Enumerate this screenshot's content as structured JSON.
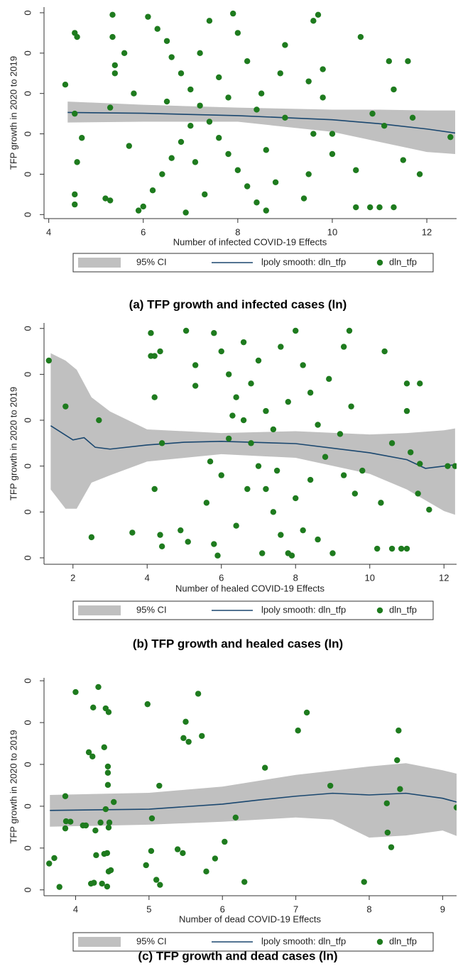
{
  "chart_data": [
    {
      "type": "scatter",
      "caption": "(a)  TFP growth and infected cases (ln)",
      "x_label": "Number of infected COVID-19 Effects",
      "y_label": "TFP growth in 2020 to 2019",
      "xlim": [
        3.9,
        12.63
      ],
      "ylim": [
        -0.1,
        5.14
      ],
      "xticks": [
        4,
        6,
        8,
        10,
        12
      ],
      "yticks": [
        {
          "value": 0,
          "label": "0"
        },
        {
          "value": 1,
          "label": "0"
        },
        {
          "value": 2,
          "label": "0"
        },
        {
          "value": 3,
          "label": "0"
        },
        {
          "value": 4,
          "label": "0"
        },
        {
          "value": 5,
          "label": "0"
        }
      ],
      "series": [
        {
          "name": "95% CI",
          "mark": "band",
          "color": "#c0c0c0",
          "x": [
            4.4,
            6,
            8,
            10,
            11,
            12,
            12.6
          ],
          "lower": [
            2.28,
            2.3,
            2.3,
            2.05,
            1.8,
            1.55,
            1.5
          ],
          "upper": [
            2.8,
            2.72,
            2.65,
            2.6,
            2.6,
            2.58,
            2.58
          ]
        },
        {
          "name": "lpoly smooth: dln_tfp",
          "mark": "line",
          "color": "#1a476f",
          "x": [
            4.4,
            6,
            8,
            10,
            11,
            12,
            12.6
          ],
          "values": [
            2.53,
            2.51,
            2.45,
            2.35,
            2.25,
            2.12,
            2.02
          ]
        },
        {
          "name": "dln_tfp",
          "mark": "point",
          "color": "#1e7b1e",
          "x": [
            4.35,
            4.55,
            4.6,
            4.55,
            4.6,
            4.55,
            4.55,
            4.7,
            5.2,
            5.3,
            5.35,
            5.35,
            5.4,
            5.4,
            5.3,
            10.6,
            11.2,
            11.6,
            11.3,
            11.1,
            11.7,
            11.5,
            11.85,
            10.5,
            10.85,
            10.5,
            10.8,
            11.0,
            11.3,
            12.5,
            12.7,
            9.7,
            9.6,
            9.8,
            9.5,
            9.8,
            9.6,
            10.0,
            10.0,
            9.5,
            9.4,
            6.1,
            6.3,
            6.5,
            6.6,
            6.8,
            7.0,
            7.2,
            7.4,
            7.6,
            7.8,
            8.0,
            8.2,
            8.4,
            8.6,
            6.0,
            6.2,
            6.4,
            6.6,
            6.8,
            7.0,
            7.2,
            7.4,
            7.6,
            7.8,
            8.0,
            8.2,
            8.4,
            8.6,
            8.8,
            9.0,
            9.0,
            5.8,
            5.7,
            5.6,
            5.9,
            6.9,
            7.3,
            7.9,
            8.9,
            6.5,
            7.1,
            8.5
          ],
          "values": [
            3.22,
            4.5,
            4.4,
            2.5,
            1.3,
            0.5,
            0.25,
            1.9,
            0.4,
            0.35,
            4.4,
            4.95,
            3.7,
            3.5,
            2.65,
            4.4,
            3.8,
            3.8,
            3.1,
            2.2,
            2.4,
            1.35,
            1.0,
            1.1,
            2.5,
            0.18,
            0.18,
            0.18,
            0.18,
            1.92,
            1.92,
            4.95,
            4.8,
            3.6,
            3.3,
            2.9,
            2.0,
            1.5,
            2.0,
            1.0,
            0.4,
            4.9,
            4.6,
            4.3,
            3.9,
            3.5,
            3.1,
            2.7,
            2.3,
            1.9,
            1.5,
            1.1,
            0.7,
            0.3,
            0.1,
            0.2,
            0.6,
            1.0,
            1.4,
            1.8,
            2.2,
            4.0,
            4.8,
            3.4,
            2.9,
            4.5,
            3.8,
            2.6,
            1.6,
            0.8,
            4.2,
            2.4,
            3.0,
            1.7,
            4.0,
            0.1,
            0.05,
            0.5,
            4.98,
            3.5,
            2.8,
            1.3,
            3.0
          ]
        }
      ]
    },
    {
      "type": "scatter",
      "caption": "(b)  TFP growth and healed cases (ln)",
      "x_label": "Number of healed COVID-19 Effects",
      "y_label": "TFP growth in 2020 to 2019",
      "xlim": [
        1.22,
        12.34
      ],
      "ylim": [
        -0.14,
        5.12
      ],
      "xticks": [
        2,
        4,
        6,
        8,
        10,
        12
      ],
      "yticks": [
        {
          "value": 0,
          "label": "0"
        },
        {
          "value": 1,
          "label": "0"
        },
        {
          "value": 2,
          "label": "0"
        },
        {
          "value": 3,
          "label": "0"
        },
        {
          "value": 4,
          "label": "0"
        },
        {
          "value": 5,
          "label": "0"
        }
      ],
      "series": [
        {
          "name": "95% CI",
          "mark": "band",
          "color": "#c0c0c0",
          "x": [
            1.4,
            1.8,
            2.1,
            2.5,
            3,
            4,
            6,
            8,
            10,
            11,
            12,
            12.3
          ],
          "lower": [
            1.49,
            1.07,
            1.07,
            1.64,
            1.8,
            2.1,
            2.26,
            2.18,
            1.83,
            1.49,
            1.02,
            0.94
          ],
          "upper": [
            4.46,
            4.3,
            4.1,
            3.5,
            3.19,
            2.8,
            2.72,
            2.76,
            2.69,
            2.72,
            2.78,
            2.82
          ]
        },
        {
          "name": "lpoly smooth: dln_tfp",
          "mark": "line",
          "color": "#1a476f",
          "x": [
            1.4,
            2,
            2.3,
            2.6,
            3,
            4,
            5,
            6,
            8,
            10,
            11,
            11.5,
            12,
            12.3
          ],
          "values": [
            2.88,
            2.57,
            2.62,
            2.41,
            2.37,
            2.46,
            2.52,
            2.54,
            2.49,
            2.29,
            2.14,
            1.95,
            2.0,
            2.03
          ]
        },
        {
          "name": "dln_tfp",
          "mark": "point",
          "color": "#1e7b1e",
          "x": [
            1.35,
            1.8,
            2.7,
            2.5,
            3.6,
            4.1,
            4.1,
            4.2,
            4.35,
            4.2,
            4.4,
            4.2,
            4.35,
            4.4,
            4.9,
            5.1,
            5.05,
            5.3,
            5.3,
            10.4,
            11,
            11.35,
            11,
            10.6,
            11.1,
            11.35,
            11.6,
            11.3,
            10.3,
            10.2,
            10.6,
            10.85,
            11,
            12.1,
            12.3,
            9.45,
            9.3,
            9.5,
            9.2,
            9.3,
            9.0,
            9.6,
            9.8,
            5.8,
            6.0,
            6.2,
            6.4,
            6.6,
            6.8,
            7.0,
            7.2,
            7.4,
            7.6,
            7.8,
            8.0,
            8.2,
            8.4,
            8.6,
            8.8,
            5.6,
            5.8,
            6.0,
            6.2,
            6.4,
            6.6,
            6.8,
            7.0,
            7.2,
            7.4,
            7.6,
            7.8,
            8.0,
            8.2,
            8.4,
            8.6,
            5.9,
            7.1,
            7.9,
            5.7,
            6.7,
            8.9,
            6.3,
            7.5
          ],
          "values": [
            4.3,
            3.3,
            3.0,
            0.45,
            0.55,
            4.9,
            4.4,
            4.4,
            4.5,
            3.5,
            2.5,
            1.5,
            0.5,
            0.25,
            0.6,
            0.35,
            4.95,
            4.2,
            3.75,
            4.5,
            3.8,
            3.8,
            3.2,
            2.5,
            2.3,
            2.05,
            1.05,
            1.4,
            1.2,
            0.2,
            0.2,
            0.2,
            0.2,
            2.0,
            2.0,
            4.95,
            4.6,
            3.3,
            2.7,
            1.8,
            0.1,
            1.4,
            1.9,
            4.9,
            4.5,
            4.0,
            3.5,
            3.0,
            2.5,
            2.0,
            1.5,
            1.0,
            0.5,
            0.1,
            4.95,
            4.2,
            3.6,
            2.9,
            2.2,
            1.2,
            0.3,
            1.8,
            2.6,
            0.7,
            4.7,
            3.8,
            4.3,
            3.2,
            2.8,
            4.6,
            3.4,
            1.3,
            0.6,
            1.7,
            0.4,
            0.05,
            0.1,
            0.05,
            2.1,
            1.5,
            3.9,
            3.1,
            1.9
          ]
        }
      ]
    },
    {
      "type": "scatter",
      "caption": "(c)  TFP growth and dead cases (ln)",
      "x_label": "Number of dead COVID-19 Effects",
      "y_label": "TFP growth in 2020 to 2019",
      "xlim": [
        3.57,
        9.19
      ],
      "ylim": [
        -0.14,
        5.07
      ],
      "xticks": [
        4,
        5,
        6,
        7,
        8,
        9
      ],
      "yticks": [
        {
          "value": 0,
          "label": "0"
        },
        {
          "value": 1,
          "label": "0"
        },
        {
          "value": 2,
          "label": "0"
        },
        {
          "value": 3,
          "label": "0"
        },
        {
          "value": 4,
          "label": "0"
        },
        {
          "value": 5,
          "label": "0"
        }
      ],
      "series": [
        {
          "name": "95% CI",
          "mark": "band",
          "color": "#c0c0c0",
          "x": [
            3.65,
            5,
            6,
            7,
            7.5,
            8,
            8.5,
            9,
            9.19
          ],
          "lower": [
            1.51,
            1.56,
            1.63,
            1.73,
            1.68,
            1.25,
            1.3,
            1.42,
            1.29
          ],
          "upper": [
            2.27,
            2.32,
            2.47,
            2.75,
            2.85,
            2.95,
            3.03,
            2.86,
            2.78
          ]
        },
        {
          "name": "lpoly smooth: dln_tfp",
          "mark": "line",
          "color": "#1a476f",
          "x": [
            3.65,
            5,
            6,
            6.5,
            7,
            7.5,
            8,
            8.5,
            9,
            9.19
          ],
          "values": [
            1.9,
            1.93,
            2.05,
            2.15,
            2.24,
            2.31,
            2.27,
            2.31,
            2.19,
            2.1
          ]
        },
        {
          "name": "dln_tfp",
          "mark": "point",
          "color": "#1e7b1e",
          "x": [
            4.0,
            4.31,
            4.24,
            4.41,
            4.45,
            4.98,
            5.67,
            5.5,
            5.47,
            5.54,
            5.72,
            7.15,
            7.03,
            8.4,
            4.18,
            4.39,
            4.23,
            4.44,
            4.44,
            6.58,
            8.38,
            4.44,
            5.14,
            7.47,
            8.42,
            3.86,
            4.52,
            4.41,
            9.19,
            8.24,
            3.87,
            3.93,
            4.1,
            4.14,
            4.34,
            4.46,
            3.86,
            4.27,
            4.45,
            5.04,
            6.18,
            6.03,
            8.25,
            8.3,
            5.39,
            5.46,
            5.03,
            4.28,
            4.39,
            4.43,
            3.71,
            3.64,
            4.96,
            5.9,
            5.78,
            4.45,
            4.48,
            4.21,
            4.25,
            4.36,
            4.43,
            5.1,
            5.15,
            6.3,
            7.93,
            3.78
          ],
          "values": [
            4.73,
            4.85,
            4.36,
            4.34,
            4.25,
            4.44,
            4.69,
            4.02,
            3.63,
            3.54,
            3.68,
            4.24,
            3.81,
            3.81,
            3.29,
            3.41,
            3.19,
            2.95,
            2.8,
            2.92,
            3.1,
            2.51,
            2.49,
            2.49,
            2.41,
            2.24,
            2.1,
            1.93,
            1.97,
            2.07,
            1.64,
            1.63,
            1.54,
            1.54,
            1.61,
            1.61,
            1.47,
            1.42,
            1.49,
            1.71,
            1.73,
            1.15,
            1.37,
            1.02,
            0.97,
            0.88,
            0.93,
            0.83,
            0.86,
            0.88,
            0.76,
            0.63,
            0.59,
            0.75,
            0.44,
            0.44,
            0.47,
            0.15,
            0.17,
            0.15,
            0.08,
            0.24,
            0.12,
            0.19,
            0.19,
            0.07
          ]
        }
      ]
    }
  ]
}
